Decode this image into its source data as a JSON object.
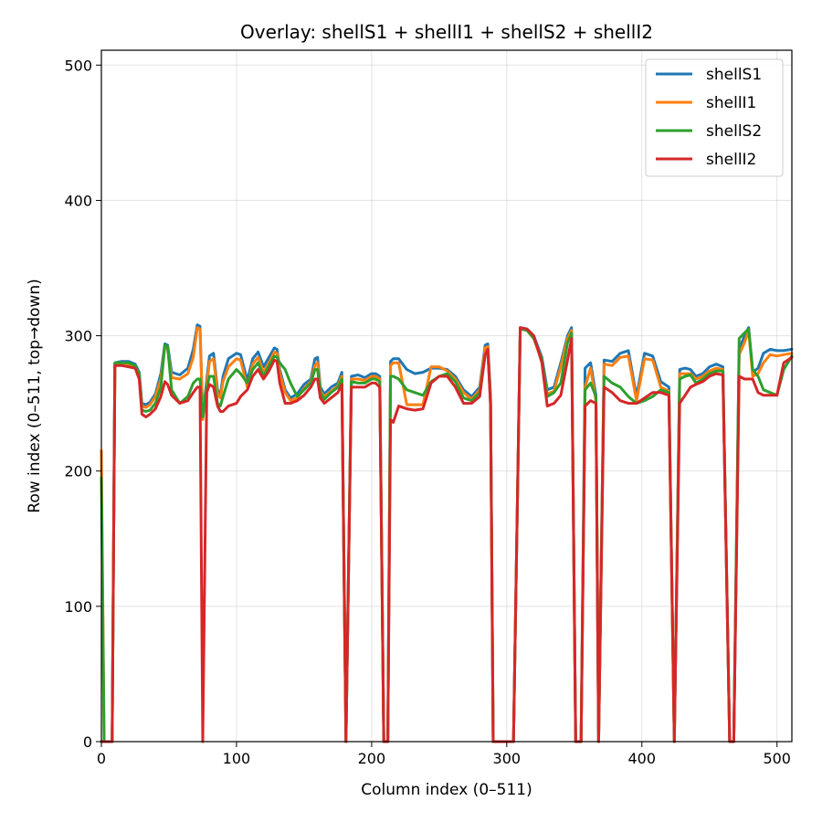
{
  "chart_data": {
    "type": "line",
    "title": "Overlay: shellS1 + shellI1 + shellS2 + shellI2",
    "xlabel": "Column index (0–511)",
    "ylabel": "Row index (0–511, top→down)",
    "xlim": [
      0,
      511
    ],
    "ylim": [
      0,
      511
    ],
    "xticks": [
      0,
      100,
      200,
      300,
      400,
      500
    ],
    "yticks": [
      0,
      100,
      200,
      300,
      400,
      500
    ],
    "grid": true,
    "legend_position": "top-right",
    "series": [
      {
        "name": "shellS1",
        "color": "#1f77b4",
        "x": [
          0,
          2,
          5,
          8,
          10,
          15,
          20,
          25,
          28,
          30,
          33,
          36,
          40,
          44,
          47,
          49,
          52,
          58,
          64,
          68,
          71,
          73,
          75,
          78,
          80,
          83,
          86,
          88,
          90,
          94,
          100,
          103,
          108,
          112,
          116,
          120,
          124,
          128,
          130,
          132,
          136,
          140,
          145,
          150,
          155,
          158,
          160,
          162,
          165,
          170,
          175,
          178,
          181,
          185,
          190,
          195,
          200,
          203,
          206,
          209,
          212,
          214,
          216,
          220,
          226,
          232,
          238,
          244,
          250,
          256,
          262,
          268,
          274,
          280,
          284,
          286,
          288,
          290,
          292,
          296,
          300,
          305,
          310,
          315,
          320,
          326,
          330,
          335,
          340,
          345,
          348,
          351,
          355,
          358,
          362,
          366,
          368,
          372,
          378,
          384,
          390,
          396,
          402,
          408,
          414,
          420,
          424,
          428,
          432,
          436,
          440,
          445,
          450,
          455,
          460,
          465,
          468,
          472,
          476,
          479,
          482,
          486,
          490,
          495,
          500,
          505,
          511
        ],
        "y": [
          0,
          0,
          0,
          0,
          280,
          281,
          281,
          279,
          273,
          250,
          249,
          251,
          257,
          272,
          294,
          293,
          273,
          271,
          276,
          290,
          308,
          307,
          240,
          268,
          285,
          287,
          260,
          256,
          270,
          283,
          287,
          286,
          267,
          283,
          288,
          277,
          284,
          291,
          290,
          275,
          260,
          254,
          257,
          264,
          268,
          283,
          284,
          262,
          257,
          262,
          265,
          273,
          0,
          270,
          271,
          269,
          272,
          272,
          270,
          0,
          0,
          281,
          283,
          283,
          275,
          272,
          273,
          276,
          276,
          275,
          270,
          260,
          255,
          262,
          293,
          294,
          256,
          0,
          0,
          0,
          0,
          0,
          306,
          305,
          300,
          284,
          260,
          262,
          280,
          300,
          306,
          0,
          0,
          276,
          280,
          256,
          0,
          282,
          281,
          287,
          289,
          255,
          287,
          285,
          266,
          262,
          0,
          275,
          276,
          275,
          270,
          272,
          277,
          279,
          277,
          0,
          0,
          290,
          300,
          306,
          273,
          276,
          287,
          290,
          289,
          289,
          290
        ]
      },
      {
        "name": "shellI1",
        "color": "#ff7f0e",
        "x": [
          0,
          2,
          5,
          8,
          10,
          15,
          20,
          25,
          28,
          30,
          33,
          36,
          40,
          44,
          47,
          49,
          52,
          58,
          64,
          68,
          71,
          73,
          75,
          78,
          80,
          83,
          86,
          88,
          90,
          94,
          100,
          103,
          108,
          112,
          116,
          120,
          124,
          128,
          130,
          132,
          136,
          140,
          145,
          150,
          155,
          158,
          160,
          162,
          165,
          170,
          175,
          178,
          181,
          185,
          190,
          195,
          200,
          203,
          206,
          209,
          212,
          214,
          216,
          220,
          226,
          232,
          238,
          244,
          250,
          256,
          262,
          268,
          274,
          280,
          284,
          286,
          288,
          290,
          292,
          296,
          300,
          305,
          310,
          315,
          320,
          326,
          330,
          335,
          340,
          345,
          348,
          351,
          355,
          358,
          362,
          366,
          368,
          372,
          378,
          384,
          390,
          396,
          402,
          408,
          414,
          420,
          424,
          428,
          432,
          436,
          440,
          445,
          450,
          455,
          460,
          465,
          468,
          472,
          476,
          479,
          482,
          486,
          490,
          495,
          500,
          505,
          511
        ],
        "y": [
          215,
          0,
          0,
          0,
          279,
          280,
          279,
          277,
          270,
          248,
          247,
          249,
          255,
          268,
          292,
          290,
          269,
          268,
          272,
          284,
          306,
          305,
          238,
          264,
          281,
          283,
          257,
          254,
          266,
          277,
          283,
          282,
          262,
          279,
          284,
          273,
          280,
          288,
          287,
          272,
          258,
          252,
          254,
          261,
          266,
          278,
          280,
          259,
          255,
          259,
          263,
          270,
          0,
          268,
          268,
          267,
          270,
          270,
          268,
          0,
          0,
          278,
          280,
          280,
          249,
          249,
          249,
          277,
          277,
          274,
          268,
          258,
          253,
          260,
          291,
          292,
          253,
          0,
          0,
          0,
          0,
          0,
          305,
          304,
          298,
          281,
          257,
          259,
          277,
          298,
          304,
          0,
          0,
          262,
          276,
          252,
          0,
          279,
          278,
          284,
          285,
          252,
          283,
          282,
          262,
          259,
          0,
          272,
          272,
          272,
          268,
          270,
          274,
          276,
          275,
          0,
          0,
          286,
          295,
          304,
          270,
          272,
          280,
          286,
          285,
          286,
          287
        ]
      },
      {
        "name": "shellS2",
        "color": "#2ca02c",
        "x": [
          0,
          2,
          5,
          8,
          10,
          15,
          20,
          25,
          28,
          30,
          33,
          36,
          40,
          44,
          47,
          49,
          52,
          58,
          64,
          68,
          71,
          73,
          75,
          78,
          80,
          83,
          86,
          88,
          90,
          94,
          100,
          103,
          108,
          112,
          116,
          120,
          124,
          128,
          130,
          132,
          136,
          140,
          145,
          150,
          155,
          158,
          160,
          162,
          165,
          170,
          175,
          178,
          181,
          185,
          190,
          195,
          200,
          203,
          206,
          209,
          212,
          214,
          216,
          220,
          226,
          232,
          238,
          244,
          250,
          256,
          262,
          268,
          274,
          280,
          284,
          286,
          288,
          290,
          292,
          296,
          300,
          305,
          310,
          315,
          320,
          326,
          330,
          335,
          340,
          345,
          348,
          351,
          355,
          358,
          362,
          366,
          368,
          372,
          378,
          384,
          390,
          396,
          402,
          408,
          414,
          420,
          424,
          428,
          432,
          436,
          440,
          445,
          450,
          455,
          460,
          465,
          468,
          472,
          476,
          479,
          482,
          486,
          490,
          495,
          500,
          505,
          511
        ],
        "y": [
          195,
          0,
          0,
          0,
          280,
          280,
          280,
          278,
          272,
          245,
          244,
          245,
          250,
          262,
          293,
          292,
          260,
          250,
          255,
          265,
          268,
          268,
          240,
          262,
          270,
          270,
          250,
          248,
          255,
          268,
          275,
          272,
          265,
          275,
          280,
          270,
          278,
          285,
          284,
          280,
          275,
          265,
          255,
          260,
          265,
          275,
          275,
          258,
          253,
          258,
          262,
          268,
          0,
          266,
          265,
          265,
          268,
          268,
          266,
          0,
          0,
          270,
          270,
          268,
          260,
          258,
          256,
          266,
          270,
          272,
          266,
          254,
          252,
          258,
          286,
          288,
          250,
          0,
          0,
          0,
          0,
          0,
          305,
          304,
          298,
          283,
          255,
          258,
          265,
          295,
          302,
          0,
          0,
          260,
          265,
          255,
          0,
          270,
          265,
          262,
          255,
          250,
          252,
          255,
          260,
          258,
          0,
          268,
          270,
          271,
          265,
          268,
          272,
          274,
          274,
          0,
          0,
          298,
          302,
          305,
          275,
          270,
          260,
          258,
          256,
          275,
          285
        ]
      },
      {
        "name": "shellI2",
        "color": "#d62728",
        "x": [
          0,
          2,
          5,
          8,
          10,
          15,
          20,
          25,
          28,
          30,
          33,
          36,
          40,
          44,
          47,
          49,
          52,
          58,
          64,
          68,
          71,
          73,
          75,
          78,
          80,
          83,
          86,
          88,
          90,
          94,
          100,
          103,
          108,
          112,
          116,
          120,
          124,
          128,
          130,
          132,
          136,
          140,
          145,
          150,
          155,
          158,
          160,
          162,
          165,
          170,
          175,
          178,
          181,
          185,
          190,
          195,
          200,
          203,
          206,
          209,
          212,
          214,
          216,
          220,
          226,
          232,
          238,
          244,
          250,
          256,
          262,
          268,
          274,
          280,
          284,
          286,
          288,
          290,
          292,
          296,
          300,
          305,
          310,
          315,
          320,
          326,
          330,
          335,
          340,
          345,
          348,
          351,
          355,
          358,
          362,
          366,
          368,
          372,
          378,
          384,
          390,
          396,
          402,
          408,
          414,
          420,
          424,
          428,
          432,
          436,
          440,
          445,
          450,
          455,
          460,
          465,
          468,
          472,
          476,
          479,
          482,
          486,
          490,
          495,
          500,
          505,
          511
        ],
        "y": [
          0,
          0,
          0,
          0,
          278,
          278,
          277,
          276,
          268,
          242,
          240,
          242,
          246,
          255,
          266,
          264,
          256,
          250,
          252,
          258,
          262,
          262,
          0,
          258,
          264,
          262,
          248,
          244,
          244,
          248,
          250,
          255,
          260,
          270,
          275,
          268,
          274,
          282,
          281,
          265,
          250,
          250,
          252,
          256,
          262,
          268,
          268,
          254,
          250,
          254,
          258,
          264,
          0,
          262,
          262,
          262,
          265,
          265,
          262,
          0,
          0,
          238,
          236,
          248,
          246,
          245,
          246,
          265,
          270,
          270,
          262,
          250,
          250,
          255,
          286,
          290,
          248,
          0,
          0,
          0,
          0,
          0,
          306,
          305,
          300,
          280,
          248,
          250,
          256,
          282,
          298,
          0,
          0,
          248,
          252,
          250,
          0,
          262,
          258,
          252,
          250,
          250,
          254,
          258,
          258,
          256,
          0,
          250,
          256,
          262,
          264,
          266,
          270,
          272,
          271,
          0,
          0,
          270,
          268,
          268,
          268,
          258,
          256,
          256,
          256,
          280,
          284
        ]
      }
    ]
  }
}
